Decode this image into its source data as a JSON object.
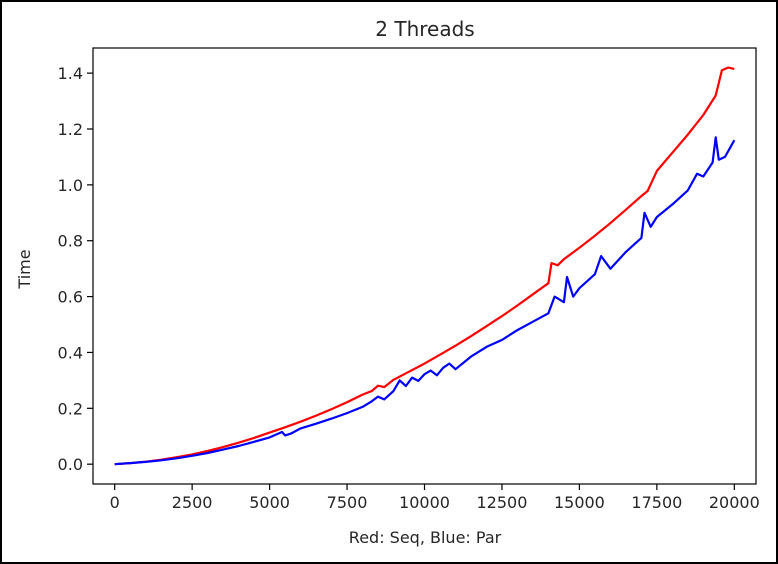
{
  "chart_data": {
    "type": "line",
    "title": "2 Threads",
    "xlabel": "Red: Seq, Blue: Par",
    "ylabel": "Time",
    "xlim": [
      -700,
      20700
    ],
    "ylim": [
      -0.071,
      1.49
    ],
    "x_ticks": [
      0,
      2500,
      5000,
      7500,
      10000,
      12500,
      15000,
      17500,
      20000
    ],
    "x_tick_labels": [
      "0",
      "2500",
      "5000",
      "7500",
      "10000",
      "12500",
      "15000",
      "17500",
      "20000"
    ],
    "y_ticks": [
      0.0,
      0.2,
      0.4,
      0.6,
      0.8,
      1.0,
      1.2,
      1.4
    ],
    "y_tick_labels": [
      "0.0",
      "0.2",
      "0.4",
      "0.6",
      "0.8",
      "1.0",
      "1.2",
      "1.4"
    ],
    "grid": false,
    "legend": "none",
    "series": [
      {
        "color": "#ff0000",
        "x": [
          0,
          500,
          1000,
          1500,
          2000,
          2500,
          3000,
          3500,
          4000,
          4500,
          5000,
          5500,
          6000,
          6500,
          7000,
          7500,
          8000,
          8300,
          8500,
          8700,
          9000,
          9500,
          10000,
          10500,
          11000,
          11500,
          12000,
          12500,
          13000,
          13500,
          14000,
          14100,
          14300,
          14500,
          15000,
          15500,
          16000,
          16500,
          17000,
          17200,
          17500,
          18000,
          18500,
          19000,
          19400,
          19600,
          19800,
          20000
        ],
        "values": [
          0.0,
          0.004,
          0.009,
          0.016,
          0.025,
          0.035,
          0.047,
          0.061,
          0.077,
          0.094,
          0.113,
          0.132,
          0.152,
          0.174,
          0.197,
          0.222,
          0.249,
          0.262,
          0.281,
          0.276,
          0.302,
          0.331,
          0.36,
          0.392,
          0.424,
          0.458,
          0.494,
          0.53,
          0.568,
          0.608,
          0.648,
          0.72,
          0.712,
          0.734,
          0.775,
          0.818,
          0.863,
          0.911,
          0.96,
          0.978,
          1.05,
          1.115,
          1.18,
          1.25,
          1.32,
          1.41,
          1.42,
          1.415
        ]
      },
      {
        "color": "#0000ff",
        "x": [
          0,
          500,
          1000,
          1500,
          2000,
          2500,
          3000,
          3500,
          4000,
          4500,
          5000,
          5400,
          5500,
          5700,
          6000,
          6500,
          7000,
          7500,
          8000,
          8300,
          8500,
          8700,
          9000,
          9200,
          9400,
          9600,
          9800,
          10000,
          10200,
          10400,
          10600,
          10800,
          11000,
          11500,
          12000,
          12500,
          13000,
          13500,
          14000,
          14200,
          14500,
          14600,
          14800,
          15000,
          15500,
          15700,
          16000,
          16500,
          17000,
          17100,
          17300,
          17500,
          18000,
          18500,
          18800,
          19000,
          19300,
          19400,
          19500,
          19700,
          19900,
          20000
        ],
        "values": [
          0.0,
          0.004,
          0.008,
          0.014,
          0.021,
          0.03,
          0.04,
          0.052,
          0.065,
          0.08,
          0.096,
          0.115,
          0.103,
          0.11,
          0.128,
          0.145,
          0.163,
          0.183,
          0.205,
          0.225,
          0.242,
          0.232,
          0.262,
          0.3,
          0.28,
          0.31,
          0.298,
          0.322,
          0.335,
          0.318,
          0.345,
          0.36,
          0.34,
          0.385,
          0.42,
          0.445,
          0.48,
          0.51,
          0.54,
          0.6,
          0.58,
          0.67,
          0.6,
          0.63,
          0.68,
          0.745,
          0.7,
          0.76,
          0.81,
          0.9,
          0.85,
          0.885,
          0.93,
          0.98,
          1.04,
          1.03,
          1.08,
          1.17,
          1.09,
          1.1,
          1.14,
          1.16
        ]
      }
    ]
  }
}
